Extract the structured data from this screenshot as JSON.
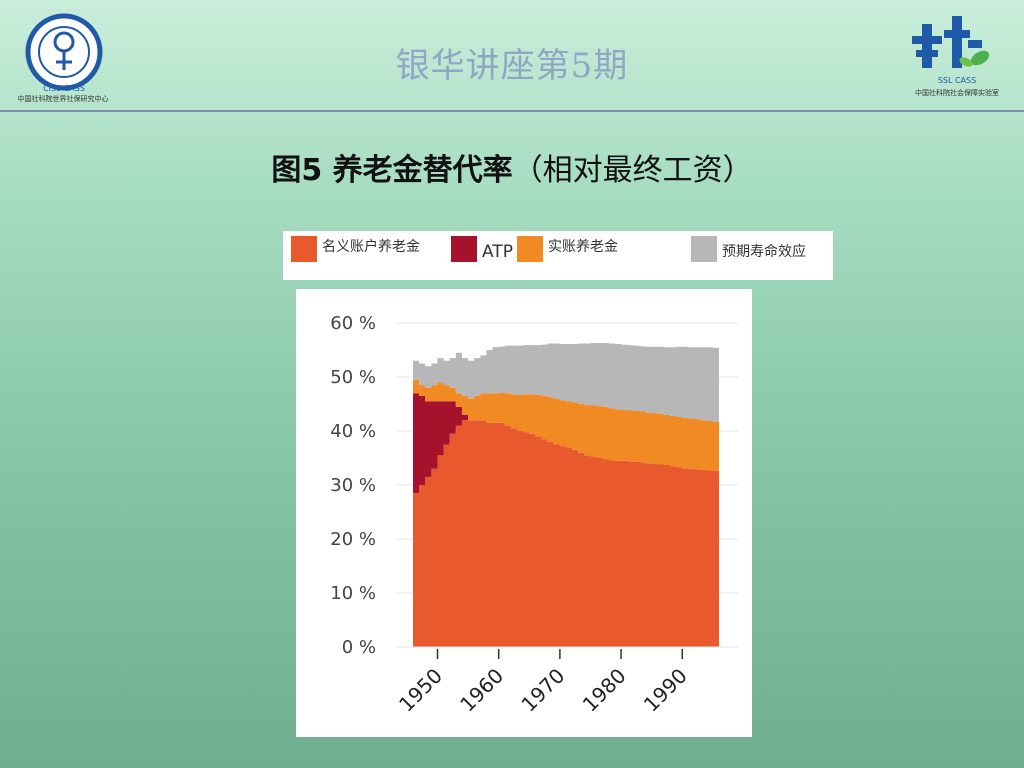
{
  "slide": {
    "title": "银华讲座第5期",
    "figure_title_bold": "图5  养老金替代率",
    "figure_title_rest": "（相对最终工资）"
  },
  "logos": {
    "left_caption_1": "CISS   CASS",
    "left_caption_2": "中国社科院世界社保研究中心",
    "right_caption_1": "SSL   CASS",
    "right_caption_2": "中国社科院社会保障实验室"
  },
  "chart_data": {
    "type": "area",
    "stacked": true,
    "x_start": 1946,
    "x_end": 1995,
    "xticks": [
      1950,
      1960,
      1970,
      1980,
      1990
    ],
    "xtick_labels": [
      "1950",
      "1960",
      "1970",
      "1980",
      "1990"
    ],
    "ylim": [
      0,
      60
    ],
    "yticks": [
      0,
      10,
      20,
      30,
      40,
      50,
      60
    ],
    "ytick_labels": [
      "0 %",
      "10 %",
      "20 %",
      "30 %",
      "40 %",
      "50 %",
      "60 %"
    ],
    "grid": true,
    "legend_position": "top",
    "x": [
      1946,
      1947,
      1948,
      1949,
      1950,
      1951,
      1952,
      1953,
      1954,
      1955,
      1956,
      1957,
      1958,
      1959,
      1960,
      1961,
      1962,
      1963,
      1964,
      1965,
      1966,
      1967,
      1968,
      1969,
      1970,
      1971,
      1972,
      1973,
      1974,
      1975,
      1976,
      1977,
      1978,
      1979,
      1980,
      1981,
      1982,
      1983,
      1984,
      1985,
      1986,
      1987,
      1988,
      1989,
      1990,
      1991,
      1992,
      1993,
      1994,
      1995
    ],
    "series": [
      {
        "name": "名义账户养老金",
        "color": "#e85a2e",
        "values": [
          28.5,
          30,
          31.5,
          33,
          35.5,
          37.5,
          39.5,
          41,
          42,
          42,
          42,
          42,
          41.5,
          41.5,
          41.5,
          41,
          40.5,
          40,
          39.8,
          39.5,
          39,
          38.5,
          38,
          37.5,
          37.2,
          37,
          36.5,
          36,
          35.5,
          35.3,
          35,
          34.8,
          34.6,
          34.5,
          34.5,
          34.4,
          34.3,
          34.2,
          34,
          33.9,
          33.8,
          33.7,
          33.5,
          33.3,
          33.1,
          33,
          32.9,
          32.8,
          32.7,
          32.6
        ]
      },
      {
        "name": "ATP",
        "color": "#a6122b",
        "values": [
          18.5,
          16.5,
          14,
          12.5,
          10,
          8,
          6,
          3.5,
          1,
          0,
          0,
          0,
          0,
          0,
          0,
          0,
          0,
          0,
          0,
          0,
          0,
          0,
          0,
          0,
          0,
          0,
          0,
          0,
          0,
          0,
          0,
          0,
          0,
          0,
          0,
          0,
          0,
          0,
          0,
          0,
          0,
          0,
          0,
          0,
          0,
          0,
          0,
          0,
          0,
          0
        ]
      },
      {
        "name": "实账养老金",
        "color": "#f28a24",
        "values": [
          2.5,
          2,
          2.5,
          3,
          3.5,
          3,
          2.5,
          2.5,
          3.5,
          4,
          4.5,
          5,
          5.5,
          5.5,
          5.6,
          6,
          6.3,
          6.7,
          7,
          7.3,
          7.7,
          8,
          8.2,
          8.5,
          8.5,
          8.5,
          8.8,
          9,
          9.3,
          9.5,
          9.6,
          9.7,
          9.6,
          9.5,
          9.4,
          9.4,
          9.4,
          9.4,
          9.4,
          9.4,
          9.4,
          9.3,
          9.3,
          9.3,
          9.3,
          9.3,
          9.3,
          9.2,
          9.2,
          9.1
        ]
      },
      {
        "name": "预期寿命效应",
        "color": "#b7b7b7",
        "values": [
          3.5,
          4,
          4,
          4,
          4.5,
          4.5,
          5.5,
          7.5,
          7,
          7,
          7,
          7,
          8,
          8.5,
          8.5,
          8.8,
          9,
          9.1,
          9.1,
          9.1,
          9.2,
          9.5,
          10,
          10.2,
          10.4,
          10.6,
          10.8,
          11.2,
          11.4,
          11.5,
          11.7,
          11.8,
          12,
          12.1,
          12.1,
          12.1,
          12.1,
          12.1,
          12.2,
          12.3,
          12.4,
          12.5,
          12.7,
          13,
          13.2,
          13.2,
          13.3,
          13.5,
          13.6,
          13.7
        ]
      }
    ]
  }
}
